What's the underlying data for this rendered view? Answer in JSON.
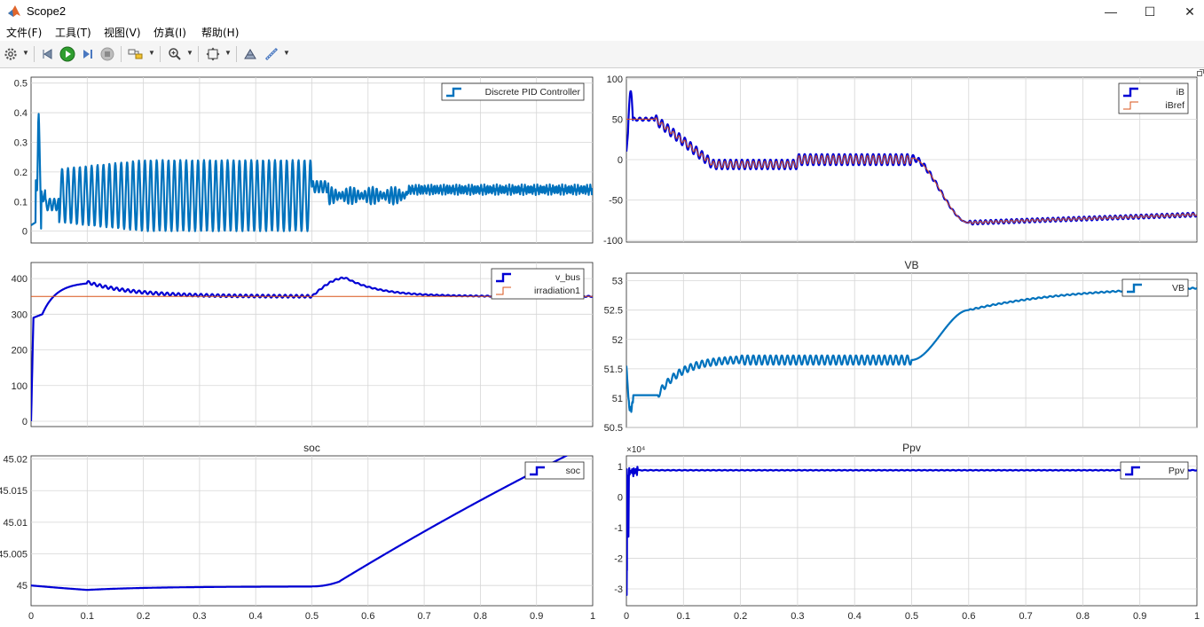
{
  "window": {
    "title": "Scope2",
    "minimize_glyph": "—",
    "maximize_glyph": "☐",
    "close_glyph": "✕"
  },
  "menu": [
    {
      "label": "文件(F)"
    },
    {
      "label": "工具(T)"
    },
    {
      "label": "视图(V)"
    },
    {
      "label": "仿真(I)"
    },
    {
      "label": "帮助(H)"
    }
  ],
  "toolbar": {
    "icons": [
      "settings-icon",
      "restore-config-icon",
      "run-icon",
      "step-forward-icon",
      "stop-icon",
      "highlight-block-icon",
      "zoom-icon",
      "autoscale-icon",
      "style-icon",
      "measure-icon"
    ]
  },
  "colors": {
    "blue": "#0000d4",
    "teal": "#0072bd",
    "orange": "#d95319",
    "grid": "#d6d6d6",
    "magenta": "#a13ca1"
  },
  "plots": [
    {
      "id": "pid",
      "title": "",
      "ylim": [
        -0.04,
        0.52
      ],
      "yticks": [
        "0",
        "0.1",
        "0.2",
        "0.3",
        "0.4",
        "0.5"
      ],
      "ytick_values": [
        0,
        0.1,
        0.2,
        0.3,
        0.4,
        0.5
      ],
      "xticks_shown": false,
      "exponent": "",
      "legend": [
        {
          "name": "Discrete PID Controller",
          "color": "#0072bd"
        }
      ]
    },
    {
      "id": "ib",
      "title": "",
      "ylim": [
        -102,
        102
      ],
      "yticks": [
        "100",
        "50",
        "0",
        "-50",
        "-100"
      ],
      "ytick_values": [
        100,
        50,
        0,
        -50,
        -100
      ],
      "xticks_shown": false,
      "exponent": "",
      "legend": [
        {
          "name": "iB",
          "color": "#0000d4"
        },
        {
          "name": "iBref",
          "color": "#d95319"
        }
      ]
    },
    {
      "id": "vbus",
      "title": "",
      "ylim": [
        -15,
        445
      ],
      "yticks": [
        "400",
        "300",
        "200",
        "100",
        "0"
      ],
      "ytick_values": [
        400,
        300,
        200,
        100,
        0
      ],
      "xticks_shown": false,
      "exponent": "",
      "legend": [
        {
          "name": "v_bus",
          "color": "#0000d4"
        },
        {
          "name": "irradiation1",
          "color": "#d95319"
        }
      ]
    },
    {
      "id": "vb",
      "title": "VB",
      "ylim": [
        50.5,
        53.13
      ],
      "yticks": [
        "53",
        "52.5",
        "52",
        "51.5",
        "51",
        "50.5"
      ],
      "ytick_values": [
        53,
        52.5,
        52,
        51.5,
        51,
        50.5
      ],
      "xticks_shown": false,
      "exponent": "",
      "legend": [
        {
          "name": "VB",
          "color": "#0072bd"
        }
      ]
    },
    {
      "id": "soc",
      "title": "soc",
      "ylim": [
        44.9968,
        45.0205
      ],
      "yticks": [
        "45.02",
        "45.015",
        "45.01",
        "45.005",
        "45"
      ],
      "ytick_values": [
        45.02,
        45.015,
        45.01,
        45.005,
        45
      ],
      "xticks_shown": true,
      "exponent": "",
      "legend": [
        {
          "name": "soc",
          "color": "#0000d4"
        }
      ]
    },
    {
      "id": "ppv",
      "title": "Ppv",
      "ylim": [
        -3.55,
        1.34
      ],
      "yticks": [
        "1",
        "0",
        "-1",
        "-2",
        "-3"
      ],
      "ytick_values": [
        1,
        0,
        -1,
        -2,
        -3
      ],
      "xticks_shown": true,
      "exponent": "×10⁴",
      "legend": [
        {
          "name": "Ppv",
          "color": "#0000d4"
        }
      ]
    }
  ],
  "xaxis": {
    "xlim": [
      0,
      1
    ],
    "ticks": [
      "0",
      "0.1",
      "0.2",
      "0.3",
      "0.4",
      "0.5",
      "0.6",
      "0.7",
      "0.8",
      "0.9",
      "1"
    ],
    "tick_values": [
      0,
      0.1,
      0.2,
      0.3,
      0.4,
      0.5,
      0.6,
      0.7,
      0.8,
      0.9,
      1
    ]
  }
}
